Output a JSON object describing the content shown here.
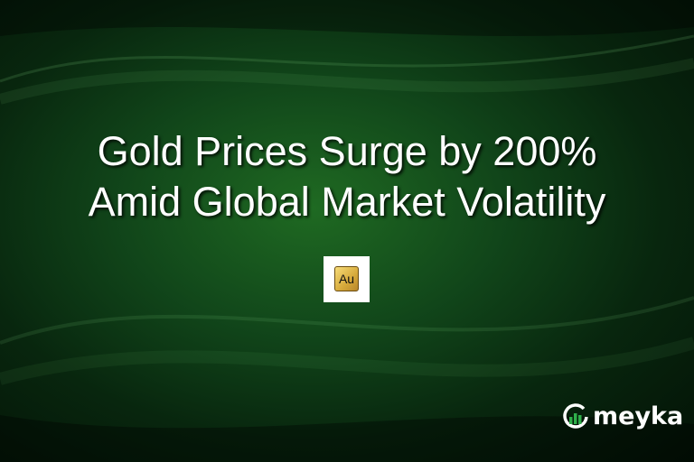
{
  "headline": {
    "line1": "Gold Prices Surge by 200%",
    "line2": "Amid Global Market Volatility"
  },
  "element_icon": {
    "symbol": "Au",
    "icon": "gold-element-tile-icon"
  },
  "brand": {
    "name": "meyka",
    "icon": "meyka-logo-icon"
  },
  "colors": {
    "background": "#11461a",
    "text": "#ffffff",
    "gold": "#d6a93a"
  }
}
